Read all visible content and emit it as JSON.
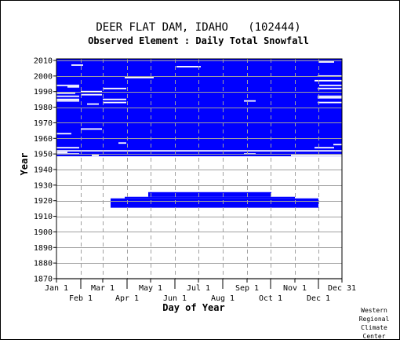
{
  "chart_data": {
    "type": "heatmap",
    "title": "DEER FLAT DAM, IDAHO   (102444)",
    "subtitle": "Observed Element : Daily Total Snowfall",
    "xlabel": "Day of Year",
    "ylabel": "Year",
    "xlim": [
      1,
      365
    ],
    "ylim": [
      1870,
      2011
    ],
    "grid": true,
    "x_ticks_upper": [
      {
        "label": "Jan 1",
        "day": 1
      },
      {
        "label": "Mar 1",
        "day": 60
      },
      {
        "label": "May 1",
        "day": 121
      },
      {
        "label": "Jul 1",
        "day": 182
      },
      {
        "label": "Sep 1",
        "day": 244
      },
      {
        "label": "Nov 1",
        "day": 305
      },
      {
        "label": "Dec 31",
        "day": 365
      }
    ],
    "x_ticks_lower": [
      {
        "label": "Feb 1",
        "day": 32
      },
      {
        "label": "Apr 1",
        "day": 91
      },
      {
        "label": "Jun 1",
        "day": 152
      },
      {
        "label": "Aug 1",
        "day": 213
      },
      {
        "label": "Oct 1",
        "day": 274
      },
      {
        "label": "Dec 1",
        "day": 335
      }
    ],
    "y_ticks": [
      1870,
      1880,
      1890,
      1900,
      1910,
      1920,
      1930,
      1940,
      1950,
      1960,
      1970,
      1980,
      1990,
      2000,
      2010
    ],
    "data_color": "#0000ff",
    "observed_blocks": [
      {
        "years": [
          1948.5,
          2011
        ],
        "days": [
          1,
          365
        ]
      },
      {
        "years": [
          1915.5,
          1921.5
        ],
        "days": [
          70,
          335
        ]
      },
      {
        "years": [
          1921.5,
          1922.5
        ],
        "days": [
          88,
          305
        ]
      },
      {
        "years": [
          1922.5,
          1925.5
        ],
        "days": [
          118,
          275
        ]
      }
    ],
    "missing_segments": [
      {
        "year": 2009,
        "days": [
          336,
          355
        ]
      },
      {
        "year": 2007,
        "days": [
          20,
          35
        ]
      },
      {
        "year": 2006,
        "days": [
          154,
          185
        ]
      },
      {
        "year": 2000,
        "days": [
          334,
          365
        ]
      },
      {
        "year": 1999,
        "days": [
          88,
          125
        ]
      },
      {
        "year": 1997,
        "days": [
          330,
          365
        ]
      },
      {
        "year": 1994,
        "days": [
          1,
          30
        ]
      },
      {
        "year": 1994,
        "days": [
          336,
          365
        ]
      },
      {
        "year": 1993,
        "days": [
          15,
          30
        ]
      },
      {
        "year": 1992,
        "days": [
          60,
          90
        ]
      },
      {
        "year": 1992,
        "days": [
          334,
          365
        ]
      },
      {
        "year": 1990,
        "days": [
          32,
          59
        ]
      },
      {
        "year": 1989,
        "days": [
          1,
          25
        ]
      },
      {
        "year": 1988,
        "days": [
          32,
          59
        ]
      },
      {
        "year": 1987,
        "days": [
          1,
          30
        ]
      },
      {
        "year": 1987,
        "days": [
          334,
          365
        ]
      },
      {
        "year": 1986,
        "days": [
          334,
          365
        ]
      },
      {
        "year": 1985,
        "days": [
          1,
          30
        ]
      },
      {
        "year": 1985,
        "days": [
          60,
          90
        ]
      },
      {
        "year": 1984,
        "days": [
          1,
          30
        ]
      },
      {
        "year": 1984,
        "days": [
          240,
          255
        ]
      },
      {
        "year": 1983,
        "days": [
          60,
          90
        ]
      },
      {
        "year": 1983,
        "days": [
          334,
          365
        ]
      },
      {
        "year": 1982,
        "days": [
          40,
          55
        ]
      },
      {
        "year": 1966,
        "days": [
          32,
          59
        ]
      },
      {
        "year": 1963,
        "days": [
          1,
          20
        ]
      },
      {
        "year": 1957,
        "days": [
          80,
          90
        ]
      },
      {
        "year": 1956,
        "days": [
          354,
          365
        ]
      },
      {
        "year": 1954,
        "days": [
          1,
          30
        ]
      },
      {
        "year": 1954,
        "days": [
          330,
          355
        ]
      },
      {
        "year": 1952,
        "days": [
          1,
          365
        ]
      },
      {
        "year": 1951,
        "days": [
          1,
          15
        ]
      },
      {
        "year": 1950,
        "days": [
          1,
          30
        ]
      },
      {
        "year": 1950,
        "days": [
          240,
          255
        ]
      },
      {
        "year": 1949,
        "days": [
          46,
          55
        ]
      },
      {
        "year": 1949,
        "days": [
          300,
          365
        ]
      }
    ]
  },
  "credit": [
    "Western",
    "Regional",
    "Climate",
    "Center"
  ]
}
